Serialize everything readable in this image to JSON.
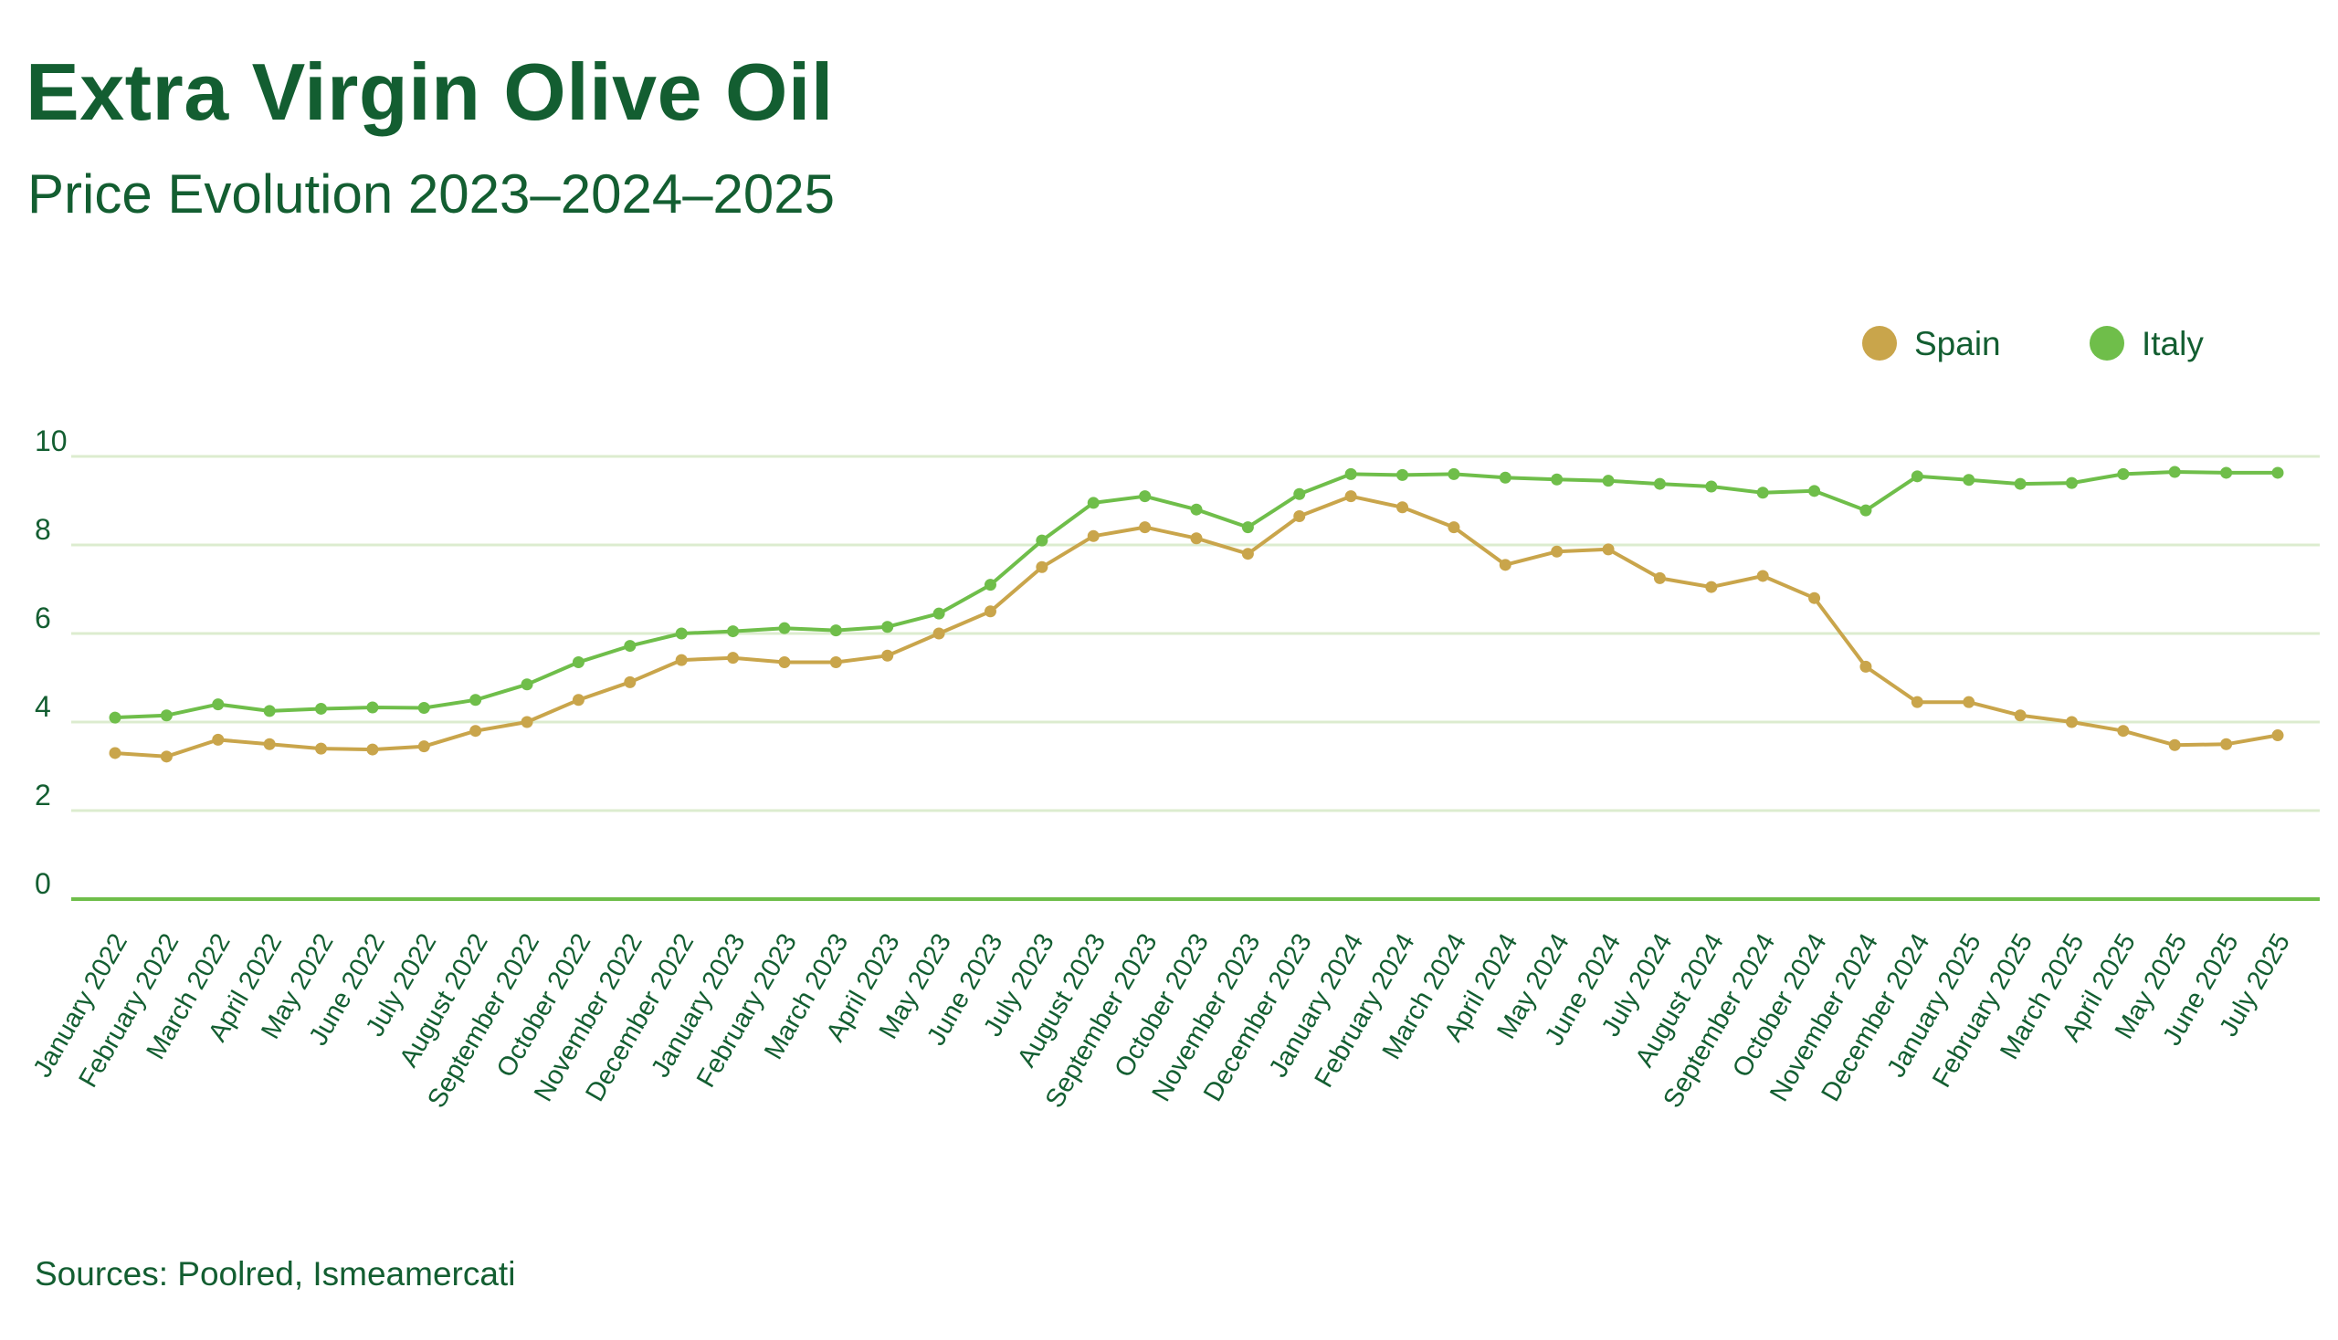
{
  "title": "Extra Virgin Olive Oil",
  "subtitle": "Price Evolution 2023–2024–2025",
  "source": "Sources: Poolred, Ismeamercati",
  "colors": {
    "title": "#135e31",
    "spain": "#c9a54b",
    "italy": "#6fbe4a",
    "grid": "#dceccf",
    "baseline": "#6fbe4a",
    "text": "#135e31"
  },
  "chart_data": {
    "type": "line",
    "legend_position": "top-right",
    "grid": true,
    "ylim": [
      0,
      10
    ],
    "yticks": [
      0,
      2,
      4,
      6,
      8,
      10
    ],
    "categories": [
      "January 2022",
      "February 2022",
      "March 2022",
      "April 2022",
      "May 2022",
      "June 2022",
      "July 2022",
      "August 2022",
      "September 2022",
      "October 2022",
      "November 2022",
      "December 2022",
      "January 2023",
      "February 2023",
      "March 2023",
      "April 2023",
      "May 2023",
      "June 2023",
      "July 2023",
      "August 2023",
      "September 2023",
      "October 2023",
      "November 2023",
      "December 2023",
      "January 2024",
      "February 2024",
      "March 2024",
      "April 2024",
      "May 2024",
      "June 2024",
      "July 2024",
      "August 2024",
      "September 2024",
      "October 2024",
      "November 2024",
      "December 2024",
      "January 2025",
      "February 2025",
      "March 2025",
      "April 2025",
      "May 2025",
      "June 2025",
      "July 2025"
    ],
    "series": [
      {
        "name": "Spain",
        "color": "#c9a54b",
        "values": [
          3.3,
          3.22,
          3.6,
          3.5,
          3.4,
          3.38,
          3.45,
          3.8,
          4.0,
          4.5,
          4.9,
          5.4,
          5.45,
          5.35,
          5.35,
          5.5,
          6.0,
          6.5,
          7.5,
          8.2,
          8.4,
          8.15,
          7.8,
          8.65,
          9.1,
          8.85,
          8.4,
          7.55,
          7.85,
          7.9,
          7.25,
          7.05,
          7.3,
          6.8,
          5.25,
          4.45,
          4.45,
          4.15,
          4.0,
          3.8,
          3.48,
          3.5,
          3.7
        ]
      },
      {
        "name": "Italy",
        "color": "#6fbe4a",
        "values": [
          4.1,
          4.15,
          4.4,
          4.25,
          4.3,
          4.33,
          4.32,
          4.5,
          4.85,
          5.35,
          5.72,
          6.0,
          6.05,
          6.12,
          6.07,
          6.15,
          6.45,
          7.1,
          8.1,
          8.95,
          9.1,
          8.8,
          8.4,
          9.15,
          9.6,
          9.58,
          9.6,
          9.52,
          9.48,
          9.45,
          9.38,
          9.32,
          9.18,
          9.22,
          8.78,
          9.55,
          9.47,
          9.38,
          9.4,
          9.6,
          9.65,
          9.63,
          9.63
        ]
      }
    ]
  }
}
